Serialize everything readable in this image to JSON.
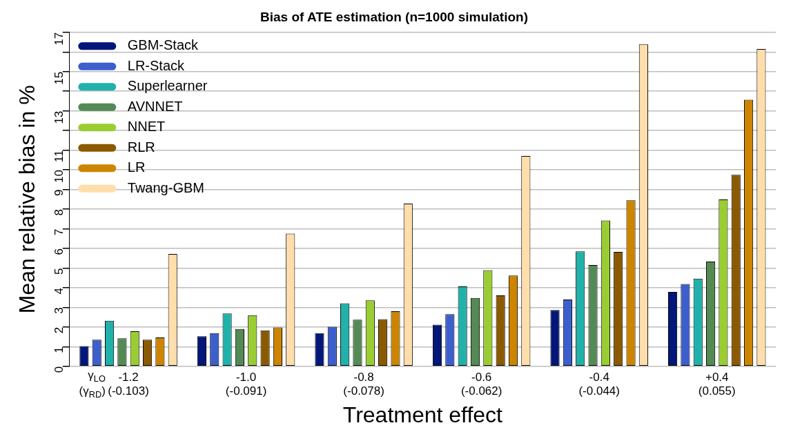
{
  "chart_data": {
    "type": "bar",
    "title": "Bias of ATE estimation (n=1000 simulation)",
    "xlabel": "Treatment effect",
    "ylabel": "Mean relative bias in %",
    "categories": [
      "-1.2\n(-0.103)",
      "-1.0\n(-0.091)",
      "-0.8\n(-0.078)",
      "-0.6\n(-0.062)",
      "-0.4\n(-0.044)",
      "+0.4\n(0.055)"
    ],
    "series": [
      {
        "name": "GBM-Stack",
        "color": "#021779",
        "values": [
          1.03,
          1.53,
          1.69,
          2.12,
          2.86,
          3.79
        ]
      },
      {
        "name": "LR-Stack",
        "color": "#3c5fcd",
        "values": [
          1.35,
          1.69,
          2.01,
          2.65,
          3.4,
          4.19
        ]
      },
      {
        "name": "Superlearner",
        "color": "#20b2aa",
        "values": [
          2.32,
          2.69,
          3.21,
          4.07,
          5.85,
          4.46
        ]
      },
      {
        "name": "AVNNET",
        "color": "#548b54",
        "values": [
          1.42,
          1.9,
          2.37,
          3.48,
          5.16,
          5.33
        ]
      },
      {
        "name": "NNET",
        "color": "#9acd32",
        "values": [
          1.78,
          2.6,
          3.36,
          4.89,
          7.42,
          8.49
        ]
      },
      {
        "name": "RLR",
        "color": "#8b5a00",
        "values": [
          1.35,
          1.83,
          2.4,
          3.61,
          5.82,
          9.75
        ]
      },
      {
        "name": "LR",
        "color": "#cd8500",
        "values": [
          1.47,
          1.98,
          2.8,
          4.62,
          8.45,
          13.57
        ]
      },
      {
        "name": "Twang-GBM",
        "color": "#ffdeab",
        "values": [
          5.72,
          6.75,
          8.28,
          10.71,
          16.39,
          16.15
        ]
      }
    ],
    "ylim": [
      0,
      17
    ],
    "yticks": [
      0,
      1,
      2,
      3,
      4,
      5,
      6,
      7,
      8,
      9,
      10,
      11,
      {
        "value": 12,
        "label": null
      },
      13,
      {
        "value": 14,
        "label": null
      },
      15,
      {
        "value": 16,
        "label": null
      },
      17
    ],
    "grid": "y",
    "legend": "top left",
    "annotations": [
      "γ$_{LO}$",
      "(γ$_{RD}$)"
    ]
  }
}
